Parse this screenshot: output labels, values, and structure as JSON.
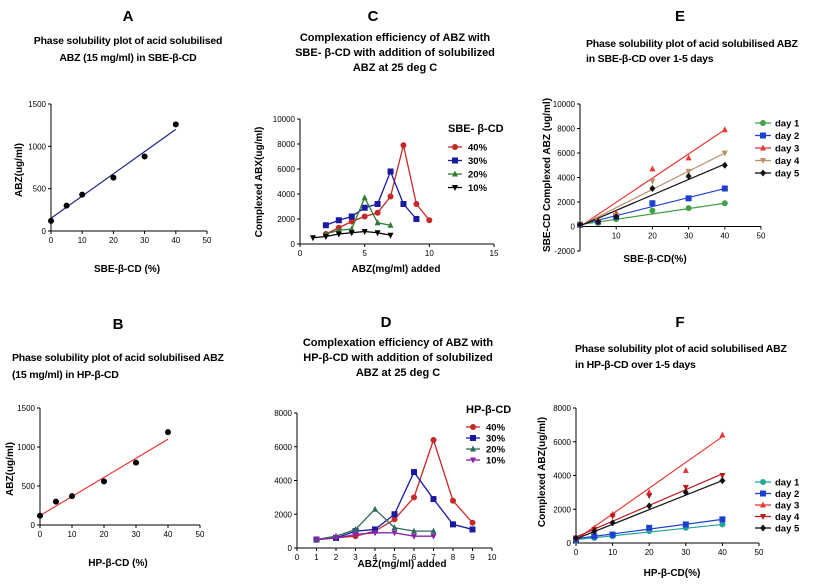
{
  "chart_data": [
    {
      "id": "A",
      "type": "scatter",
      "title_lines": [
        "Phase solubility plot of  acid solubilised",
        "ABZ (15 mg/ml) in SBE-β-CD"
      ],
      "xlabel": "SBE-β-CD (%)",
      "ylabel": "ABZ(ug/ml)",
      "xlim": [
        0,
        50
      ],
      "ylim": [
        0,
        1500
      ],
      "xticks": [
        0,
        10,
        20,
        30,
        40,
        50
      ],
      "yticks": [
        0,
        500,
        1000,
        1500
      ],
      "series": [
        {
          "name": "ABZ",
          "color": "#000000",
          "marker": "circle",
          "x": [
            0,
            5,
            10,
            20,
            30,
            40
          ],
          "y": [
            120,
            300,
            430,
            630,
            880,
            1260
          ]
        }
      ],
      "fits": [
        {
          "color": "#1a237e",
          "x": [
            0,
            40
          ],
          "y": [
            150,
            1200
          ]
        }
      ]
    },
    {
      "id": "B",
      "type": "scatter",
      "title_lines": [
        "Phase solubility plot of acid solubilised ABZ",
        "(15 mg/ml) in HP-β-CD"
      ],
      "xlabel": "HP-β-CD (%)",
      "ylabel": "ABZ(ug/ml)",
      "xlim": [
        0,
        50
      ],
      "ylim": [
        0,
        1500
      ],
      "xticks": [
        0,
        10,
        20,
        30,
        40,
        50
      ],
      "yticks": [
        0,
        500,
        1000,
        1500
      ],
      "series": [
        {
          "name": "ABZ",
          "color": "#000000",
          "marker": "circle",
          "x": [
            0,
            5,
            10,
            20,
            30,
            40
          ],
          "y": [
            120,
            300,
            370,
            560,
            800,
            1190
          ]
        }
      ],
      "fits": [
        {
          "color": "#e53935",
          "x": [
            0,
            40
          ],
          "y": [
            120,
            1100
          ]
        }
      ]
    },
    {
      "id": "C",
      "type": "line",
      "title_lines": [
        "Complexation efficiency of ABZ with",
        "SBE- β-CD with addition of solubilized",
        "ABZ at 25 deg C"
      ],
      "xlabel": "ABZ(mg/ml) added",
      "ylabel": "Complexed ABX(ug/ml)",
      "xlim": [
        0,
        15
      ],
      "ylim": [
        0,
        10000
      ],
      "xticks": [
        0,
        5,
        10,
        15
      ],
      "yticks": [
        0,
        2000,
        4000,
        6000,
        8000,
        10000
      ],
      "legend_title": "SBE- β-CD",
      "series": [
        {
          "name": "40%",
          "color": "#c62828",
          "marker": "circle",
          "x": [
            2,
            3,
            4,
            5,
            6,
            7,
            8,
            9,
            10
          ],
          "y": [
            800,
            1300,
            1800,
            2200,
            2500,
            3800,
            7900,
            3200,
            1900
          ]
        },
        {
          "name": "30%",
          "color": "#1a1aa0",
          "marker": "square",
          "x": [
            2,
            3,
            4,
            5,
            6,
            7,
            8,
            9
          ],
          "y": [
            1500,
            1900,
            2200,
            2900,
            3200,
            5800,
            3200,
            2000
          ]
        },
        {
          "name": "20%",
          "color": "#2e7d32",
          "marker": "triangle-up",
          "x": [
            2,
            3,
            4,
            5,
            6,
            7
          ],
          "y": [
            800,
            1100,
            1200,
            3700,
            1700,
            1500
          ]
        },
        {
          "name": "10%",
          "color": "#000000",
          "marker": "triangle-down",
          "x": [
            1,
            2,
            3,
            4,
            5,
            6,
            7
          ],
          "y": [
            500,
            600,
            800,
            900,
            1000,
            900,
            700
          ]
        }
      ]
    },
    {
      "id": "D",
      "type": "line",
      "title_lines": [
        "Complexation efficiency of ABZ with",
        "HP-β-CD with addition of solubilized",
        "ABZ at 25 deg C"
      ],
      "xlabel": "ABZ(mg/ml) added",
      "ylabel": "",
      "xlim": [
        0,
        10
      ],
      "ylim": [
        0,
        8000
      ],
      "xticks": [
        0,
        1,
        2,
        3,
        4,
        5,
        6,
        7,
        8,
        9,
        10
      ],
      "yticks": [
        0,
        2000,
        4000,
        6000,
        8000
      ],
      "legend_title": "HP-β-CD",
      "series": [
        {
          "name": "40%",
          "color": "#c62828",
          "marker": "circle",
          "x": [
            1,
            2,
            3,
            4,
            5,
            6,
            7,
            8,
            9
          ],
          "y": [
            500,
            600,
            700,
            1000,
            1700,
            3000,
            6400,
            2800,
            1500
          ]
        },
        {
          "name": "30%",
          "color": "#1a1aa0",
          "marker": "square",
          "x": [
            1,
            2,
            3,
            4,
            5,
            6,
            7,
            8,
            9
          ],
          "y": [
            500,
            600,
            1000,
            1100,
            2000,
            4500,
            2900,
            1400,
            1100
          ]
        },
        {
          "name": "20%",
          "color": "#2e6b5e",
          "marker": "triangle-up",
          "x": [
            1,
            2,
            3,
            4,
            5,
            6,
            7
          ],
          "y": [
            500,
            700,
            1100,
            2300,
            1200,
            1000,
            1000
          ]
        },
        {
          "name": "10%",
          "color": "#8e24aa",
          "marker": "triangle-down",
          "x": [
            1,
            2,
            3,
            4,
            5,
            6,
            7
          ],
          "y": [
            500,
            600,
            800,
            900,
            900,
            700,
            700
          ]
        }
      ]
    },
    {
      "id": "E",
      "type": "scatter",
      "title_lines": [
        "Phase solubility plot of acid solubilised ABZ",
        "in SBE-β-CD over 1-5 days"
      ],
      "xlabel": "SBE-β-CD(%)",
      "ylabel": "SBE-CD Complexed ABZ (ug/ml)",
      "xlim": [
        0,
        50
      ],
      "ylim": [
        -2000,
        10000
      ],
      "xticks": [
        10,
        20,
        30,
        40,
        50
      ],
      "yticks": [
        -2000,
        0,
        2000,
        4000,
        6000,
        8000,
        10000
      ],
      "series": [
        {
          "name": "day 1",
          "color": "#43a047",
          "marker": "circle",
          "x": [
            0,
            5,
            10,
            20,
            30,
            40
          ],
          "y": [
            150,
            300,
            600,
            1300,
            1500,
            1900
          ]
        },
        {
          "name": "day 2",
          "color": "#1e40d0",
          "marker": "square",
          "x": [
            0,
            5,
            10,
            20,
            30,
            40
          ],
          "y": [
            150,
            400,
            800,
            1900,
            2300,
            3100
          ]
        },
        {
          "name": "day 3",
          "color": "#e53935",
          "marker": "triangle-up",
          "x": [
            0,
            5,
            10,
            20,
            30,
            40
          ],
          "y": [
            200,
            500,
            1100,
            4700,
            5600,
            7900
          ]
        },
        {
          "name": "day 4",
          "color": "#b8906a",
          "marker": "triangle-down",
          "x": [
            0,
            5,
            10,
            20,
            30,
            40
          ],
          "y": [
            200,
            450,
            900,
            3700,
            4500,
            6000
          ]
        },
        {
          "name": "day 5",
          "color": "#111111",
          "marker": "diamond",
          "x": [
            0,
            5,
            10,
            20,
            30,
            40
          ],
          "y": [
            150,
            400,
            800,
            3100,
            4100,
            5000
          ]
        }
      ],
      "fits": [
        {
          "color": "#43a047",
          "x": [
            0,
            40
          ],
          "y": [
            150,
            1900
          ]
        },
        {
          "color": "#1e40d0",
          "x": [
            0,
            40
          ],
          "y": [
            150,
            3100
          ]
        },
        {
          "color": "#e53935",
          "x": [
            0,
            40
          ],
          "y": [
            0,
            7900
          ]
        },
        {
          "color": "#b8906a",
          "x": [
            0,
            40
          ],
          "y": [
            50,
            6000
          ]
        },
        {
          "color": "#111111",
          "x": [
            0,
            40
          ],
          "y": [
            50,
            5100
          ]
        }
      ]
    },
    {
      "id": "F",
      "type": "scatter",
      "title_lines": [
        "Phase solubility plot of acid solubilised ABZ",
        "in HP-β-CD over 1-5 days"
      ],
      "xlabel": "HP-β-CD(%)",
      "ylabel": "Complexed ABZ(ug/ml)",
      "xlim": [
        0,
        50
      ],
      "ylim": [
        0,
        8000
      ],
      "xticks": [
        0,
        10,
        20,
        30,
        40,
        50
      ],
      "yticks": [
        0,
        2000,
        4000,
        6000,
        8000
      ],
      "series": [
        {
          "name": "day 1",
          "color": "#26a69a",
          "marker": "circle",
          "x": [
            0,
            5,
            10,
            20,
            30,
            40
          ],
          "y": [
            150,
            300,
            400,
            700,
            900,
            1100
          ]
        },
        {
          "name": "day 2",
          "color": "#1e40d0",
          "marker": "square",
          "x": [
            0,
            5,
            10,
            20,
            30,
            40
          ],
          "y": [
            200,
            400,
            500,
            900,
            1100,
            1400
          ]
        },
        {
          "name": "day 3",
          "color": "#e53935",
          "marker": "triangle-up",
          "x": [
            0,
            5,
            10,
            20,
            30,
            40
          ],
          "y": [
            300,
            900,
            1700,
            3000,
            4300,
            6400
          ]
        },
        {
          "name": "day 4",
          "color": "#b71c1c",
          "marker": "triangle-down",
          "x": [
            0,
            5,
            10,
            20,
            30,
            40
          ],
          "y": [
            300,
            800,
            1600,
            2800,
            3300,
            4000
          ]
        },
        {
          "name": "day 5",
          "color": "#111111",
          "marker": "diamond",
          "x": [
            0,
            5,
            10,
            20,
            30,
            40
          ],
          "y": [
            300,
            700,
            1200,
            2200,
            3000,
            3700
          ]
        }
      ],
      "fits": [
        {
          "color": "#26a69a",
          "x": [
            0,
            40
          ],
          "y": [
            200,
            1100
          ]
        },
        {
          "color": "#1e40d0",
          "x": [
            0,
            40
          ],
          "y": [
            250,
            1400
          ]
        },
        {
          "color": "#e53935",
          "x": [
            0,
            40
          ],
          "y": [
            200,
            6300
          ]
        },
        {
          "color": "#b71c1c",
          "x": [
            0,
            40
          ],
          "y": [
            350,
            4100
          ]
        },
        {
          "color": "#111111",
          "x": [
            0,
            40
          ],
          "y": [
            250,
            3700
          ]
        }
      ]
    }
  ]
}
